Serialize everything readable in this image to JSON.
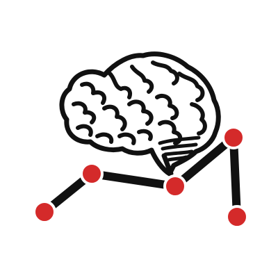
{
  "icon": {
    "name": "brain-with-line-graph-icon",
    "line_color": "#111111",
    "point_color": "#d42a2a",
    "brain_color": "#111111",
    "background": "#ffffff"
  }
}
